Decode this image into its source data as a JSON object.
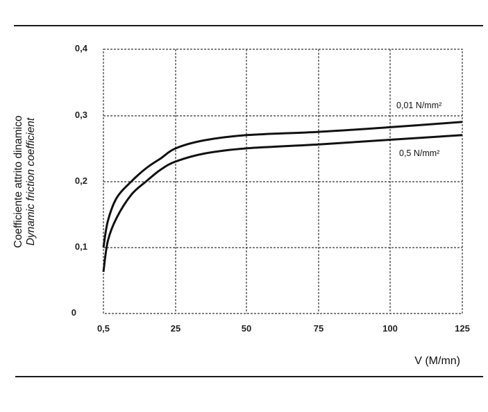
{
  "chart_data": {
    "type": "line",
    "title": "",
    "xlabel": "V (M/mn)",
    "ylabel": [
      "Coefficiente attrito dinamico",
      "Dynamic friction coefficient"
    ],
    "x_ticks": [
      "0,5",
      "25",
      "50",
      "75",
      "100",
      "125"
    ],
    "y_ticks": [
      "0",
      "0,1",
      "0,2",
      "0,3",
      "0,4"
    ],
    "xlim": [
      0.5,
      125
    ],
    "ylim": [
      0,
      0.4
    ],
    "grid": true,
    "legend_position": "inline-right",
    "series": [
      {
        "name": "0,01 N/mm²",
        "x": [
          0.5,
          2,
          5,
          10,
          15,
          20,
          25,
          35,
          50,
          75,
          100,
          125
        ],
        "y": [
          0.1,
          0.14,
          0.175,
          0.2,
          0.22,
          0.235,
          0.25,
          0.262,
          0.27,
          0.275,
          0.282,
          0.29
        ]
      },
      {
        "name": "0,5 N/mm²",
        "x": [
          0.5,
          2,
          5,
          10,
          15,
          20,
          25,
          35,
          50,
          75,
          100,
          125
        ],
        "y": [
          0.063,
          0.11,
          0.145,
          0.18,
          0.2,
          0.218,
          0.23,
          0.242,
          0.25,
          0.256,
          0.263,
          0.27
        ]
      }
    ]
  },
  "labels": {
    "ylabel_line1": "Coefficiente attrito dinamico",
    "ylabel_line2": "Dynamic friction coefficient",
    "xlabel": "V (M/mn)",
    "legend_upper": "0,01 N/mm²",
    "legend_lower": "0,5 N/mm²",
    "x_ticks": [
      "0,5",
      "25",
      "50",
      "75",
      "100",
      "125"
    ],
    "y_ticks": [
      "0,4",
      "0,3",
      "0,2",
      "0,1",
      "0"
    ]
  }
}
